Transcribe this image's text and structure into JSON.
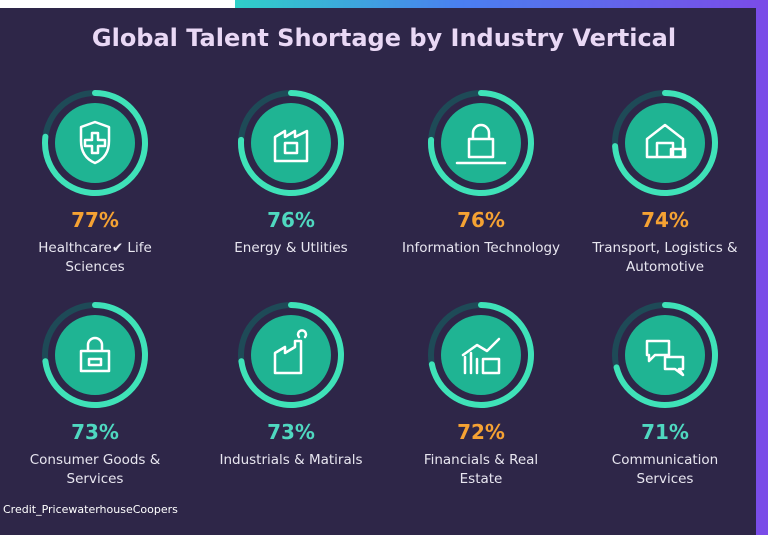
{
  "chart_data": {
    "type": "ring",
    "title": "Global Talent Shortage by Industry Vertical",
    "categories": [
      "Healthcare✔ Life Sciences",
      "Energy & Utlities",
      "Information Technology",
      "Transport, Logistics & Automotive",
      "Consumer Goods & Services",
      "Industrials & Matirals",
      "Financials & Real Estate",
      "Communication Services"
    ],
    "values": [
      77,
      76,
      76,
      74,
      73,
      73,
      72,
      71
    ],
    "value_labels": [
      "77%",
      "76%",
      "76%",
      "74%",
      "73%",
      "73%",
      "72%",
      "71%"
    ],
    "value_colors": [
      "#f5a233",
      "#4fd8c0",
      "#f5a233",
      "#f5a233",
      "#4fd8c0",
      "#4fd8c0",
      "#f5a233",
      "#4fd8c0"
    ],
    "ring_color": "#3fe2b8",
    "track_color": "#1e4a57",
    "fill_color": "#1fb493",
    "ylim": [
      0,
      100
    ],
    "source": "Credit_PricewaterhouseCoopers"
  }
}
